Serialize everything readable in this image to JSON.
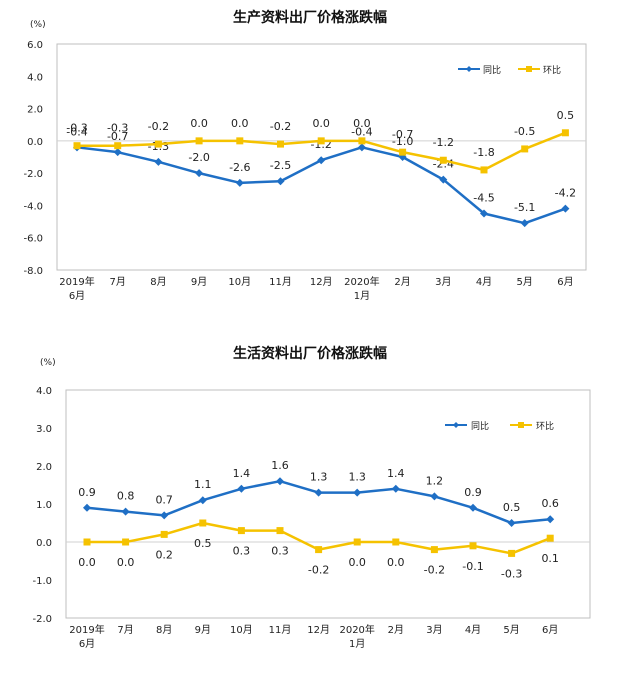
{
  "chart_data": [
    {
      "type": "line",
      "title": "生产资料出厂价格涨跌幅",
      "unit": "(%)",
      "categories": [
        [
          "2019年",
          "6月"
        ],
        [
          "7月"
        ],
        [
          "8月"
        ],
        [
          "9月"
        ],
        [
          "10月"
        ],
        [
          "11月"
        ],
        [
          "12月"
        ],
        [
          "2020年",
          "1月"
        ],
        [
          "2月"
        ],
        [
          "3月"
        ],
        [
          "4月"
        ],
        [
          "5月"
        ],
        [
          "6月"
        ]
      ],
      "ylim": [
        -8.0,
        6.0
      ],
      "yticks": [
        "6.0",
        "4.0",
        "2.0",
        "0.0",
        "-2.0",
        "-4.0",
        "-6.0",
        "-8.0"
      ],
      "ytick_values": [
        6,
        4,
        2,
        0,
        -2,
        -4,
        -6,
        -8
      ],
      "grid": false,
      "legend_position": "top-right",
      "series": [
        {
          "name": "同比",
          "color": "#1f6fc5",
          "marker": "diamond",
          "values": [
            -0.4,
            -0.7,
            -1.3,
            -2.0,
            -2.6,
            -2.5,
            -1.2,
            -0.4,
            -1.0,
            -2.4,
            -4.5,
            -5.1,
            -4.2
          ],
          "labels": [
            "-0.4",
            "-0.7",
            "-1.3",
            "-2.0",
            "-2.6",
            "-2.5",
            "-1.2",
            "-0.4",
            "-1.0",
            "-2.4",
            "-4.5",
            "-5.1",
            "-4.2"
          ]
        },
        {
          "name": "环比",
          "color": "#f5c200",
          "marker": "square",
          "values": [
            -0.3,
            -0.3,
            -0.2,
            0.0,
            0.0,
            -0.2,
            0.0,
            0.0,
            -0.7,
            -1.2,
            -1.8,
            -0.5,
            0.5
          ],
          "labels": [
            "-0.3",
            "-0.3",
            "-0.2",
            "0.0",
            "0.0",
            "-0.2",
            "0.0",
            "0.0",
            "-0.7",
            "-1.2",
            "-1.8",
            "-0.5",
            "0.5"
          ]
        }
      ]
    },
    {
      "type": "line",
      "title": "生活资料出厂价格涨跌幅",
      "unit": "(%)",
      "categories": [
        [
          "2019年",
          "6月"
        ],
        [
          "7月"
        ],
        [
          "8月"
        ],
        [
          "9月"
        ],
        [
          "10月"
        ],
        [
          "11月"
        ],
        [
          "12月"
        ],
        [
          "2020年",
          "1月"
        ],
        [
          "2月"
        ],
        [
          "3月"
        ],
        [
          "4月"
        ],
        [
          "5月"
        ],
        [
          "6月"
        ]
      ],
      "ylim": [
        -2.0,
        4.0
      ],
      "yticks": [
        "4.0",
        "3.0",
        "2.0",
        "1.0",
        "0.0",
        "-1.0",
        "-2.0"
      ],
      "ytick_values": [
        4,
        3,
        2,
        1,
        0,
        -1,
        -2
      ],
      "grid": false,
      "legend_position": "top-right",
      "series": [
        {
          "name": "同比",
          "color": "#1f6fc5",
          "marker": "diamond",
          "values": [
            0.9,
            0.8,
            0.7,
            1.1,
            1.4,
            1.6,
            1.3,
            1.3,
            1.4,
            1.2,
            0.9,
            0.5,
            0.6
          ],
          "labels": [
            "0.9",
            "0.8",
            "0.7",
            "1.1",
            "1.4",
            "1.6",
            "1.3",
            "1.3",
            "1.4",
            "1.2",
            "0.9",
            "0.5",
            "0.6"
          ]
        },
        {
          "name": "环比",
          "color": "#f5c200",
          "marker": "square",
          "values": [
            0.0,
            0.0,
            0.2,
            0.5,
            0.3,
            0.3,
            -0.2,
            0.0,
            0.0,
            -0.2,
            -0.1,
            -0.3,
            0.1
          ],
          "labels": [
            "0.0",
            "0.0",
            "0.2",
            "0.5",
            "0.3",
            "0.3",
            "-0.2",
            "0.0",
            "0.0",
            "-0.2",
            "-0.1",
            "-0.3",
            "0.1"
          ]
        }
      ]
    }
  ]
}
